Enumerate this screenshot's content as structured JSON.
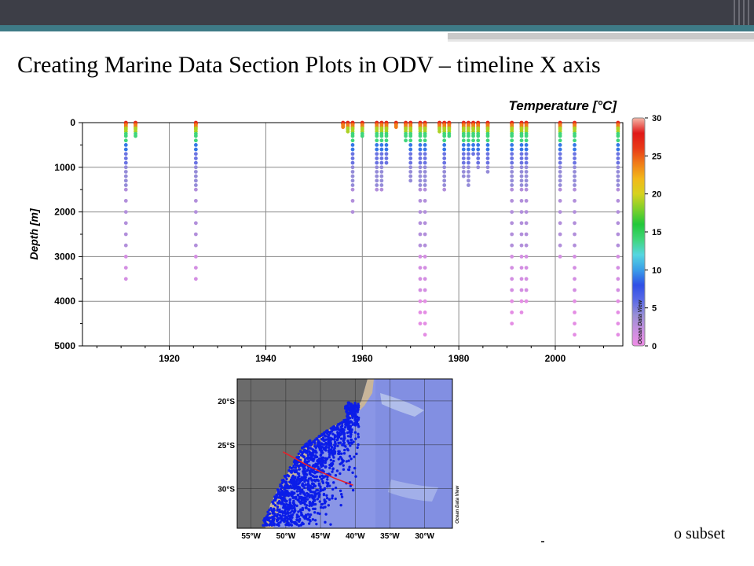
{
  "slide": {
    "title": "Creating Marine Data Section Plots in ODV – timeline X axis",
    "caption_fragment": "o subset"
  },
  "chart_data": [
    {
      "type": "scatter",
      "title": "Temperature [°C]",
      "xlabel": "",
      "ylabel": "Depth [m]",
      "xlim": [
        1902,
        2014
      ],
      "ylim": [
        0,
        5000
      ],
      "y_inverted": true,
      "x_ticks": [
        1920,
        1940,
        1960,
        1980,
        2000
      ],
      "y_ticks": [
        0,
        1000,
        2000,
        3000,
        4000,
        5000
      ],
      "grid": true,
      "colorbar": {
        "label": "Ocean Data View",
        "range": [
          0,
          30
        ],
        "ticks": [
          0,
          5,
          10,
          15,
          20,
          25,
          30
        ],
        "colors": [
          "#f08ce6",
          "#c98fe0",
          "#9a8fd6",
          "#5a6ae6",
          "#2f4fe6",
          "#3a9ee8",
          "#55d6e0",
          "#3fd67a",
          "#22c83a",
          "#7fd02a",
          "#d6d21e",
          "#f2b81a",
          "#f07d18",
          "#e83a18",
          "#e01818",
          "#f5b8a8"
        ]
      },
      "profiles": [
        {
          "year": 1911,
          "max_depth": 3700
        },
        {
          "year": 1913,
          "max_depth": 300
        },
        {
          "year": 1925.5,
          "max_depth": 3500
        },
        {
          "year": 1956,
          "max_depth": 100
        },
        {
          "year": 1957,
          "max_depth": 200
        },
        {
          "year": 1958,
          "max_depth": 2150
        },
        {
          "year": 1960,
          "max_depth": 300
        },
        {
          "year": 1963,
          "max_depth": 1550
        },
        {
          "year": 1964,
          "max_depth": 1500
        },
        {
          "year": 1965,
          "max_depth": 900
        },
        {
          "year": 1967,
          "max_depth": 100
        },
        {
          "year": 1969,
          "max_depth": 400
        },
        {
          "year": 1970,
          "max_depth": 1300
        },
        {
          "year": 1972,
          "max_depth": 4700
        },
        {
          "year": 1973,
          "max_depth": 4800
        },
        {
          "year": 1976,
          "max_depth": 200
        },
        {
          "year": 1977,
          "max_depth": 1700
        },
        {
          "year": 1978,
          "max_depth": 300
        },
        {
          "year": 1981,
          "max_depth": 1200
        },
        {
          "year": 1982,
          "max_depth": 1400
        },
        {
          "year": 1983,
          "max_depth": 700
        },
        {
          "year": 1984,
          "max_depth": 1000
        },
        {
          "year": 1986,
          "max_depth": 1100
        },
        {
          "year": 1991,
          "max_depth": 4700
        },
        {
          "year": 1993,
          "max_depth": 4300
        },
        {
          "year": 1994,
          "max_depth": 4200
        },
        {
          "year": 2001,
          "max_depth": 3000
        },
        {
          "year": 2004,
          "max_depth": 4800
        },
        {
          "year": 2013,
          "max_depth": 4900
        }
      ]
    },
    {
      "type": "scatter",
      "title": "",
      "xlabel": "",
      "ylabel": "",
      "xlim": [
        -57,
        -26
      ],
      "ylim": [
        -34.5,
        -17.5
      ],
      "x_ticks": [
        -55,
        -50,
        -45,
        -40,
        -35,
        -30
      ],
      "x_tick_labels": [
        "55°W",
        "50°W",
        "45°W",
        "40°W",
        "35°W",
        "30°W"
      ],
      "y_ticks": [
        -20,
        -25,
        -30
      ],
      "y_tick_labels": [
        "20°S",
        "25°S",
        "30°S"
      ],
      "grid": true,
      "watermark": "Ocean Data View",
      "station_color": "#0b1de8",
      "section_color": "#e8202a",
      "section_line": [
        [
          -50.4,
          -25.8
        ],
        [
          -46.5,
          -27.5
        ],
        [
          -43,
          -28.8
        ],
        [
          -40.3,
          -29.6
        ]
      ],
      "land_color": "#6b6b6b",
      "ocean_color": "#8a96e6"
    }
  ]
}
